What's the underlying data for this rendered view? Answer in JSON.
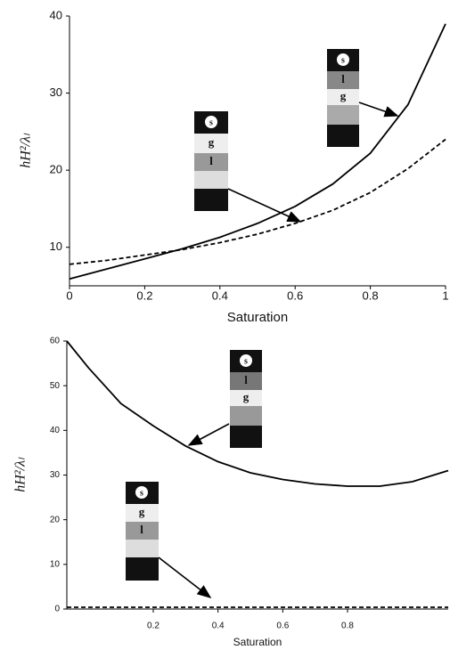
{
  "chart_data": [
    {
      "type": "line",
      "x_label": "Saturation",
      "y_label": "hH²/λₗ",
      "xlim": [
        0,
        1
      ],
      "ylim": [
        5,
        40
      ],
      "xticks": [
        0,
        0.2,
        0.4,
        0.6,
        0.8,
        1
      ],
      "yticks": [
        10,
        20,
        30,
        40
      ],
      "series": [
        {
          "color": "#000000",
          "line_style": "solid",
          "x": [
            0,
            0.1,
            0.2,
            0.3,
            0.4,
            0.5,
            0.6,
            0.7,
            0.8,
            0.9,
            1
          ],
          "values": [
            5.9,
            7.2,
            8.5,
            9.8,
            11.3,
            13.1,
            15.3,
            18.2,
            22.2,
            28.5,
            39
          ]
        },
        {
          "color": "#000000",
          "line_style": "dashed",
          "x": [
            0,
            0.1,
            0.2,
            0.3,
            0.4,
            0.5,
            0.6,
            0.7,
            0.8,
            0.9,
            1
          ],
          "values": [
            7.8,
            8.3,
            9,
            9.7,
            10.6,
            11.7,
            13.1,
            14.8,
            17.1,
            20.2,
            24
          ]
        }
      ],
      "insets": [
        {
          "labels": [
            "s",
            "g",
            "l"
          ]
        },
        {
          "labels": [
            "s",
            "l",
            "g"
          ]
        }
      ]
    },
    {
      "type": "line",
      "x_label": "Saturation",
      "y_label": "hH²/λₗ",
      "xlim": [
        -0.067,
        1.111
      ],
      "ylim": [
        0,
        60
      ],
      "xticks": [
        0.2,
        0.4,
        0.6,
        0.8
      ],
      "yticks": [
        0,
        10,
        20,
        30,
        40,
        50,
        60
      ],
      "series": [
        {
          "color": "#000000",
          "line_style": "solid",
          "x": [
            -0.067,
            0,
            0.1,
            0.2,
            0.3,
            0.4,
            0.5,
            0.6,
            0.7,
            0.8,
            0.9,
            1,
            1.111
          ],
          "values": [
            60,
            54,
            46,
            41,
            36.5,
            33,
            30.5,
            29,
            28,
            27.5,
            27.5,
            28.5,
            31
          ]
        },
        {
          "color": "#000000",
          "line_style": "dashed",
          "x": [
            -0.067,
            1.111
          ],
          "values": [
            0.4,
            0.4
          ]
        }
      ],
      "insets": [
        {
          "labels": [
            "s",
            "l",
            "g"
          ]
        },
        {
          "labels": [
            "s",
            "g",
            "l"
          ]
        }
      ]
    }
  ]
}
